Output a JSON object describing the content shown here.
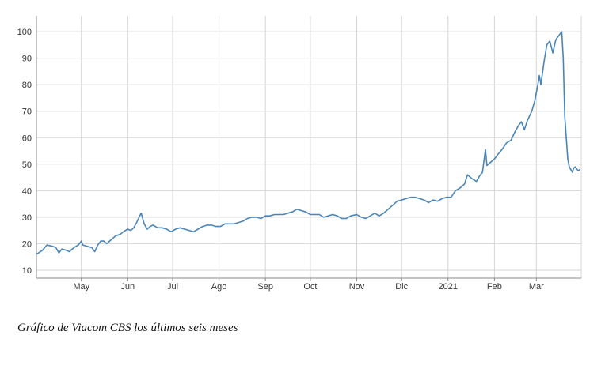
{
  "caption": "Gráfico de Viacom CBS los últimos seis meses",
  "colors": {
    "line": "#4a85b8",
    "grid": "#d4d4d4",
    "axis": "#888888"
  },
  "chart_data": {
    "type": "line",
    "title": "",
    "xlabel": "",
    "ylabel": "",
    "grid": true,
    "legend": "none",
    "ylim": [
      7,
      106
    ],
    "xlim": [
      "2020-04-01",
      "2021-03-31"
    ],
    "yticks": [
      10,
      20,
      30,
      40,
      50,
      60,
      70,
      80,
      90,
      100
    ],
    "xticks": [
      {
        "date": "2020-05-01",
        "label": "May"
      },
      {
        "date": "2020-06-01",
        "label": "Jun"
      },
      {
        "date": "2020-07-01",
        "label": "Jul"
      },
      {
        "date": "2020-08-01",
        "label": "Ago"
      },
      {
        "date": "2020-09-01",
        "label": "Sep"
      },
      {
        "date": "2020-10-01",
        "label": "Oct"
      },
      {
        "date": "2020-11-01",
        "label": "Nov"
      },
      {
        "date": "2020-12-01",
        "label": "Dic"
      },
      {
        "date": "2021-01-01",
        "label": "2021"
      },
      {
        "date": "2021-02-01",
        "label": "Feb"
      },
      {
        "date": "2021-03-01",
        "label": "Mar"
      }
    ],
    "series": [
      {
        "points": [
          [
            "2020-04-01",
            16.0
          ],
          [
            "2020-04-05",
            17.5
          ],
          [
            "2020-04-08",
            19.5
          ],
          [
            "2020-04-12",
            19.0
          ],
          [
            "2020-04-14",
            18.5
          ],
          [
            "2020-04-16",
            16.5
          ],
          [
            "2020-04-18",
            18.0
          ],
          [
            "2020-04-21",
            17.5
          ],
          [
            "2020-04-23",
            17.0
          ],
          [
            "2020-04-26",
            18.5
          ],
          [
            "2020-04-29",
            19.5
          ],
          [
            "2020-05-01",
            21.0
          ],
          [
            "2020-05-02",
            19.5
          ],
          [
            "2020-05-05",
            19.0
          ],
          [
            "2020-05-08",
            18.5
          ],
          [
            "2020-05-10",
            17.0
          ],
          [
            "2020-05-12",
            19.5
          ],
          [
            "2020-05-14",
            21.0
          ],
          [
            "2020-05-16",
            21.0
          ],
          [
            "2020-05-18",
            20.0
          ],
          [
            "2020-05-21",
            21.5
          ],
          [
            "2020-05-24",
            23.0
          ],
          [
            "2020-05-27",
            23.5
          ],
          [
            "2020-05-29",
            24.5
          ],
          [
            "2020-06-01",
            25.5
          ],
          [
            "2020-06-03",
            25.0
          ],
          [
            "2020-06-05",
            26.0
          ],
          [
            "2020-06-07",
            28.0
          ],
          [
            "2020-06-09",
            30.5
          ],
          [
            "2020-06-10",
            31.5
          ],
          [
            "2020-06-12",
            27.5
          ],
          [
            "2020-06-14",
            25.5
          ],
          [
            "2020-06-16",
            26.5
          ],
          [
            "2020-06-18",
            27.0
          ],
          [
            "2020-06-21",
            26.0
          ],
          [
            "2020-06-24",
            26.0
          ],
          [
            "2020-06-27",
            25.5
          ],
          [
            "2020-06-30",
            24.5
          ],
          [
            "2020-07-03",
            25.5
          ],
          [
            "2020-07-06",
            26.0
          ],
          [
            "2020-07-09",
            25.5
          ],
          [
            "2020-07-12",
            25.0
          ],
          [
            "2020-07-15",
            24.5
          ],
          [
            "2020-07-18",
            25.5
          ],
          [
            "2020-07-21",
            26.5
          ],
          [
            "2020-07-24",
            27.0
          ],
          [
            "2020-07-27",
            27.0
          ],
          [
            "2020-07-30",
            26.5
          ],
          [
            "2020-08-02",
            26.5
          ],
          [
            "2020-08-05",
            27.5
          ],
          [
            "2020-08-08",
            27.5
          ],
          [
            "2020-08-11",
            27.5
          ],
          [
            "2020-08-14",
            28.0
          ],
          [
            "2020-08-17",
            28.5
          ],
          [
            "2020-08-20",
            29.5
          ],
          [
            "2020-08-23",
            30.0
          ],
          [
            "2020-08-26",
            30.0
          ],
          [
            "2020-08-29",
            29.5
          ],
          [
            "2020-09-01",
            30.5
          ],
          [
            "2020-09-04",
            30.5
          ],
          [
            "2020-09-07",
            31.0
          ],
          [
            "2020-09-10",
            31.0
          ],
          [
            "2020-09-13",
            31.0
          ],
          [
            "2020-09-16",
            31.5
          ],
          [
            "2020-09-19",
            32.0
          ],
          [
            "2020-09-22",
            33.0
          ],
          [
            "2020-09-25",
            32.5
          ],
          [
            "2020-09-28",
            32.0
          ],
          [
            "2020-10-01",
            31.0
          ],
          [
            "2020-10-04",
            31.0
          ],
          [
            "2020-10-07",
            31.0
          ],
          [
            "2020-10-10",
            30.0
          ],
          [
            "2020-10-13",
            30.5
          ],
          [
            "2020-10-16",
            31.0
          ],
          [
            "2020-10-19",
            30.5
          ],
          [
            "2020-10-22",
            29.5
          ],
          [
            "2020-10-25",
            29.5
          ],
          [
            "2020-10-28",
            30.5
          ],
          [
            "2020-11-01",
            31.0
          ],
          [
            "2020-11-04",
            30.0
          ],
          [
            "2020-11-07",
            29.5
          ],
          [
            "2020-11-10",
            30.5
          ],
          [
            "2020-11-13",
            31.5
          ],
          [
            "2020-11-16",
            30.5
          ],
          [
            "2020-11-19",
            31.5
          ],
          [
            "2020-11-22",
            33.0
          ],
          [
            "2020-11-25",
            34.5
          ],
          [
            "2020-11-28",
            36.0
          ],
          [
            "2020-12-01",
            36.5
          ],
          [
            "2020-12-04",
            37.0
          ],
          [
            "2020-12-07",
            37.5
          ],
          [
            "2020-12-10",
            37.5
          ],
          [
            "2020-12-13",
            37.0
          ],
          [
            "2020-12-16",
            36.5
          ],
          [
            "2020-12-19",
            35.5
          ],
          [
            "2020-12-22",
            36.5
          ],
          [
            "2020-12-25",
            36.0
          ],
          [
            "2020-12-28",
            37.0
          ],
          [
            "2020-12-31",
            37.5
          ],
          [
            "2021-01-03",
            37.5
          ],
          [
            "2021-01-06",
            40.0
          ],
          [
            "2021-01-09",
            41.0
          ],
          [
            "2021-01-12",
            42.5
          ],
          [
            "2021-01-14",
            46.0
          ],
          [
            "2021-01-17",
            44.5
          ],
          [
            "2021-01-20",
            43.5
          ],
          [
            "2021-01-22",
            45.5
          ],
          [
            "2021-01-24",
            47.0
          ],
          [
            "2021-01-26",
            55.5
          ],
          [
            "2021-01-27",
            49.5
          ],
          [
            "2021-01-29",
            50.5
          ],
          [
            "2021-02-01",
            52.0
          ],
          [
            "2021-02-03",
            53.5
          ],
          [
            "2021-02-06",
            55.5
          ],
          [
            "2021-02-09",
            58.0
          ],
          [
            "2021-02-12",
            59.0
          ],
          [
            "2021-02-15",
            62.5
          ],
          [
            "2021-02-17",
            64.5
          ],
          [
            "2021-02-19",
            66.0
          ],
          [
            "2021-02-21",
            63.0
          ],
          [
            "2021-02-23",
            66.5
          ],
          [
            "2021-02-26",
            70.0
          ],
          [
            "2021-02-28",
            74.0
          ],
          [
            "2021-03-02",
            80.0
          ],
          [
            "2021-03-03",
            83.5
          ],
          [
            "2021-03-04",
            80.0
          ],
          [
            "2021-03-06",
            88.0
          ],
          [
            "2021-03-08",
            95.0
          ],
          [
            "2021-03-10",
            96.5
          ],
          [
            "2021-03-12",
            92.0
          ],
          [
            "2021-03-14",
            97.0
          ],
          [
            "2021-03-16",
            98.5
          ],
          [
            "2021-03-18",
            100.0
          ],
          [
            "2021-03-19",
            90.0
          ],
          [
            "2021-03-20",
            68.0
          ],
          [
            "2021-03-22",
            52.0
          ],
          [
            "2021-03-23",
            49.0
          ],
          [
            "2021-03-25",
            47.0
          ],
          [
            "2021-03-26",
            48.5
          ],
          [
            "2021-03-27",
            49.0
          ],
          [
            "2021-03-29",
            47.5
          ],
          [
            "2021-03-30",
            48.0
          ]
        ]
      }
    ]
  }
}
